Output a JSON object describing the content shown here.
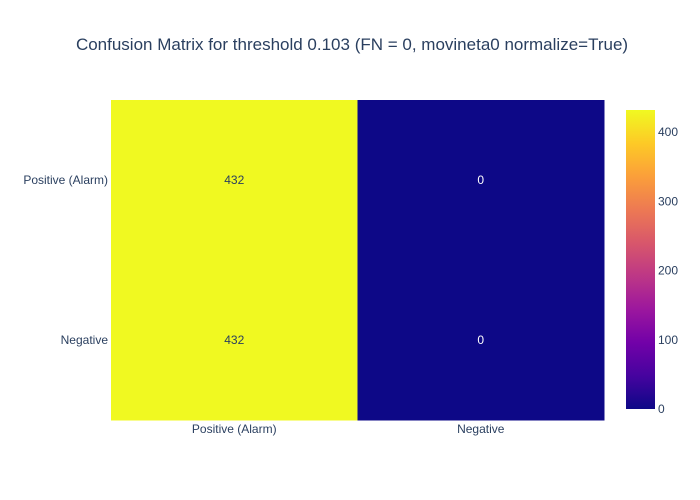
{
  "chart_data": {
    "type": "heatmap",
    "title": "Confusion Matrix for threshold 0.103 (FN = 0, movineta0 normalize=True)",
    "xlabel": "",
    "ylabel": "",
    "x_categories": [
      "Positive (Alarm)",
      "Negative"
    ],
    "y_categories": [
      "Positive (Alarm)",
      "Negative"
    ],
    "z": [
      [
        432,
        0
      ],
      [
        432,
        0
      ]
    ],
    "cell_text": [
      [
        "432",
        "0"
      ],
      [
        "432",
        "0"
      ]
    ],
    "zlim": [
      0,
      432
    ],
    "colorbar": {
      "ticks": [
        0,
        100,
        200,
        300,
        400
      ],
      "tick_labels": [
        "0",
        "100",
        "200",
        "300",
        "400"
      ]
    },
    "colorscale": [
      "#0d0887",
      "#46039f",
      "#7201a8",
      "#9c179e",
      "#bd3786",
      "#d8576b",
      "#ed7953",
      "#fb9f3a",
      "#fdca26",
      "#f0f921"
    ],
    "grid": false,
    "legend": "colorbar-right"
  }
}
